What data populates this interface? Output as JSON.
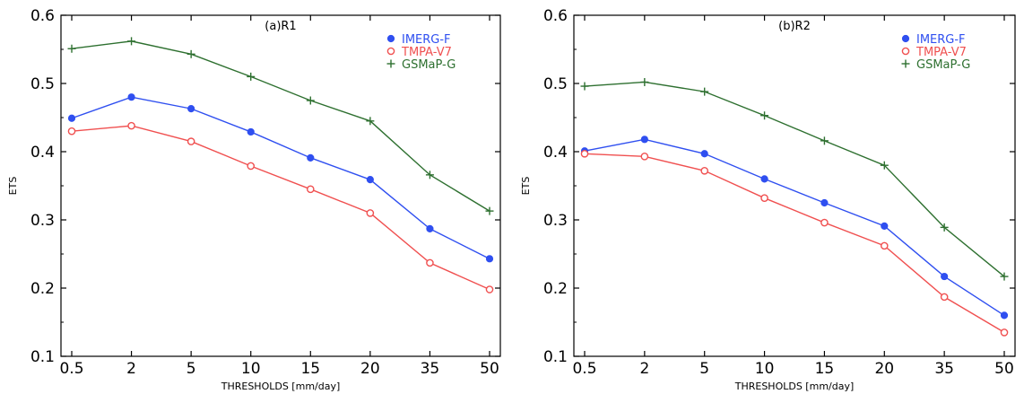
{
  "colors": {
    "imerg": "#2f4ff0",
    "tmpa": "#f05050",
    "gsmap": "#2e7030",
    "axis": "#000000"
  },
  "legend_markers": {
    "imerg": "filled-circle",
    "tmpa": "open-circle",
    "gsmap": "plus"
  },
  "chart_data": [
    {
      "type": "line",
      "title": "(a)R1",
      "xlabel": "THRESHOLDS [mm/day]",
      "ylabel": "ETS",
      "categories": [
        "0.5",
        "2",
        "5",
        "10",
        "15",
        "20",
        "35",
        "50"
      ],
      "ylim": [
        0.1,
        0.6
      ],
      "yticks": [
        "0.1",
        "0.2",
        "0.3",
        "0.4",
        "0.5",
        "0.6"
      ],
      "legend_position": "top-right",
      "series": [
        {
          "name": "IMERG-F",
          "key": "imerg",
          "values": [
            0.449,
            0.48,
            0.463,
            0.429,
            0.391,
            0.359,
            0.287,
            0.243
          ]
        },
        {
          "name": "TMPA-V7",
          "key": "tmpa",
          "values": [
            0.43,
            0.438,
            0.415,
            0.379,
            0.345,
            0.31,
            0.237,
            0.198
          ]
        },
        {
          "name": "GSMaP-G",
          "key": "gsmap",
          "values": [
            0.551,
            0.562,
            0.543,
            0.51,
            0.475,
            0.445,
            0.366,
            0.313
          ]
        }
      ]
    },
    {
      "type": "line",
      "title": "(b)R2",
      "xlabel": "THRESHOLDS [mm/day]",
      "ylabel": "ETS",
      "categories": [
        "0.5",
        "2",
        "5",
        "10",
        "15",
        "20",
        "35",
        "50"
      ],
      "ylim": [
        0.1,
        0.6
      ],
      "yticks": [
        "0.1",
        "0.2",
        "0.3",
        "0.4",
        "0.5",
        "0.6"
      ],
      "legend_position": "top-right",
      "series": [
        {
          "name": "IMERG-F",
          "key": "imerg",
          "values": [
            0.401,
            0.418,
            0.397,
            0.36,
            0.325,
            0.291,
            0.217,
            0.16
          ]
        },
        {
          "name": "TMPA-V7",
          "key": "tmpa",
          "values": [
            0.397,
            0.393,
            0.372,
            0.332,
            0.296,
            0.262,
            0.187,
            0.135
          ]
        },
        {
          "name": "GSMaP-G",
          "key": "gsmap",
          "values": [
            0.496,
            0.502,
            0.488,
            0.453,
            0.416,
            0.38,
            0.289,
            0.217
          ]
        }
      ]
    }
  ]
}
